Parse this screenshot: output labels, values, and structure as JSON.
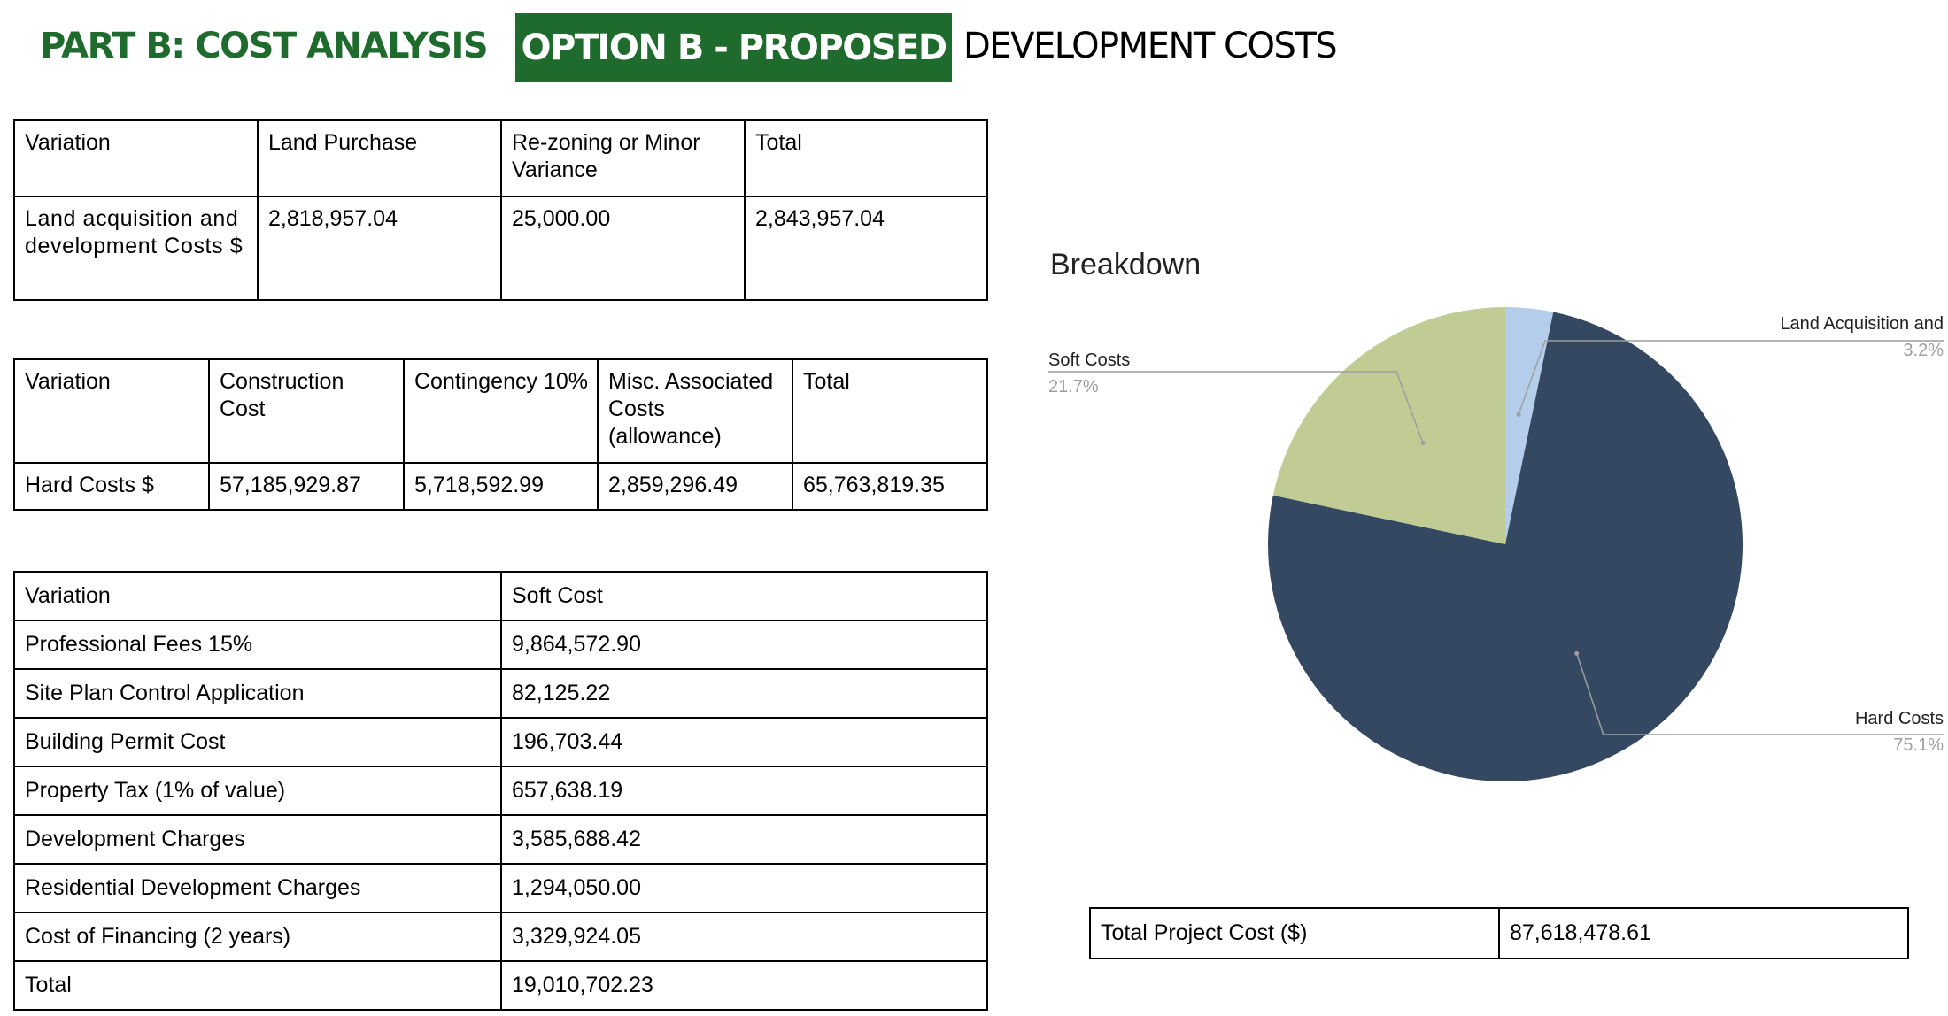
{
  "header": {
    "part_title": "PART B: COST ANALYSIS",
    "option_label": "OPTION B - PROPOSED",
    "heading_rest": "DEVELOPMENT COSTS",
    "accent_color": "#1f6b2e"
  },
  "land_table": {
    "headers": [
      "Variation",
      "Land Purchase",
      "Re-zoning or Minor Variance",
      "Total"
    ],
    "row": [
      "Land acquisition and development Costs $",
      "2,818,957.04",
      "25,000.00",
      "2,843,957.04"
    ]
  },
  "hard_table": {
    "headers": [
      "Variation",
      "Construction Cost",
      "Contingency 10%",
      "Misc. Associated Costs (allowance)",
      "Total"
    ],
    "row": [
      "Hard Costs $",
      "57,185,929.87",
      "5,718,592.99",
      "2,859,296.49",
      "65,763,819.35"
    ]
  },
  "soft_table": {
    "headers": [
      "Variation",
      "Soft Cost"
    ],
    "rows": [
      [
        "Professional Fees 15%",
        "9,864,572.90"
      ],
      [
        "Site Plan Control Application",
        "82,125.22"
      ],
      [
        "Building Permit Cost",
        "196,703.44"
      ],
      [
        "Property Tax (1% of value)",
        "657,638.19"
      ],
      [
        "Development Charges",
        "3,585,688.42"
      ],
      [
        "Residential Development Charges",
        "1,294,050.00"
      ],
      [
        "Cost of Financing (2 years)",
        "3,329,924.05"
      ],
      [
        "Total",
        "19,010,702.23"
      ]
    ]
  },
  "total_project": {
    "label": "Total Project Cost ($)",
    "value": "87,618,478.61"
  },
  "chart_data": {
    "type": "pie",
    "title": "Breakdown",
    "slices": [
      {
        "label": "Land Acquisition and",
        "percent_label": "3.2%",
        "value": 2843957.04,
        "color": "#b4cdea"
      },
      {
        "label": "Hard Costs",
        "percent_label": "75.1%",
        "value": 65763819.35,
        "color": "#344861"
      },
      {
        "label": "Soft Costs",
        "percent_label": "21.7%",
        "value": 19010702.23,
        "color": "#c0cc94"
      }
    ]
  }
}
